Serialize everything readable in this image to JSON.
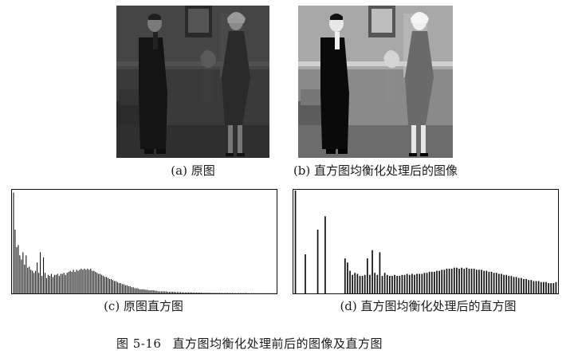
{
  "figure": {
    "number": "图 5-16",
    "title": "直方图均衡化处理前后的图像及直方图"
  },
  "panels": {
    "a": {
      "caption": "(a) 原图"
    },
    "b": {
      "caption": "(b) 直方图均衡化处理后的图像"
    },
    "c": {
      "caption": "(c) 原图直方图"
    },
    "d": {
      "caption": "(d) 直方图均衡化处理后的直方图"
    }
  },
  "chart_data": [
    {
      "type": "bar",
      "description_ref": "c",
      "x": [
        0,
        1,
        2,
        3,
        4,
        5,
        6,
        7,
        8,
        9,
        10,
        11,
        12,
        13,
        14,
        15,
        16,
        17,
        18,
        19,
        20,
        21,
        22,
        23,
        24,
        25,
        26,
        27,
        28,
        29,
        30,
        31,
        32,
        33,
        34,
        35,
        36,
        37,
        38,
        39,
        40,
        41,
        42,
        43,
        44,
        45,
        46,
        47,
        48,
        49,
        50,
        51,
        52,
        53,
        54,
        55,
        56,
        57,
        58,
        59,
        60,
        61,
        62,
        63,
        64,
        65,
        66,
        67,
        68,
        69,
        70,
        71,
        72,
        73,
        74,
        75,
        76,
        77,
        78,
        79,
        80,
        81,
        82,
        83,
        84,
        85,
        86,
        87,
        88,
        89,
        90,
        91,
        92,
        93,
        94,
        95,
        96,
        97,
        98,
        99,
        100,
        101,
        102,
        103,
        104,
        105,
        106,
        107,
        108,
        109,
        110,
        111,
        112,
        113,
        114,
        115,
        116,
        117,
        118,
        119,
        120,
        121,
        122,
        123,
        124,
        125,
        126,
        127,
        128,
        129,
        130,
        131,
        132,
        133,
        134,
        135,
        136,
        137,
        138,
        139,
        140,
        141,
        142,
        143,
        144,
        145,
        146,
        147,
        148,
        149,
        150,
        151,
        152,
        153,
        154,
        155,
        156,
        157,
        158,
        159,
        160,
        161,
        162,
        163,
        164,
        165,
        166
      ],
      "values": [
        0.98,
        0.62,
        0.45,
        0.47,
        0.37,
        0.33,
        0.4,
        0.28,
        0.37,
        0.25,
        0.26,
        0.23,
        0.22,
        0.2,
        0.22,
        0.3,
        0.2,
        0.4,
        0.17,
        0.35,
        0.2,
        0.15,
        0.18,
        0.17,
        0.19,
        0.16,
        0.18,
        0.18,
        0.19,
        0.17,
        0.19,
        0.19,
        0.2,
        0.18,
        0.2,
        0.21,
        0.22,
        0.21,
        0.23,
        0.21,
        0.23,
        0.22,
        0.23,
        0.24,
        0.23,
        0.24,
        0.23,
        0.24,
        0.23,
        0.24,
        0.22,
        0.22,
        0.21,
        0.2,
        0.19,
        0.19,
        0.18,
        0.17,
        0.16,
        0.16,
        0.15,
        0.14,
        0.14,
        0.13,
        0.12,
        0.12,
        0.11,
        0.1,
        0.1,
        0.09,
        0.09,
        0.08,
        0.08,
        0.07,
        0.07,
        0.06,
        0.06,
        0.05,
        0.05,
        0.05,
        0.04,
        0.04,
        0.04,
        0.04,
        0.035,
        0.035,
        0.03,
        0.03,
        0.03,
        0.03,
        0.025,
        0.025,
        0.02,
        0.02,
        0.02,
        0.02,
        0.02,
        0.02,
        0.015,
        0.015,
        0.015,
        0.015,
        0.015,
        0.012,
        0.012,
        0.012,
        0.012,
        0.01,
        0.01,
        0.01,
        0.01,
        0.01,
        0.01,
        0.01,
        0.008,
        0.008,
        0.008,
        0.008,
        0.008,
        0.008,
        0.006,
        0.006,
        0.006,
        0.006,
        0.006,
        0.006,
        0.005,
        0.005,
        0.005,
        0.005,
        0.005,
        0.005,
        0.004,
        0.004,
        0.004,
        0.004,
        0.004,
        0.004,
        0.004,
        0.004,
        0.003,
        0.003,
        0.003,
        0.003,
        0.003,
        0.003,
        0.003,
        0.003,
        0.003,
        0.002,
        0.002,
        0.002,
        0.002,
        0.002,
        0.002,
        0.002,
        0.002,
        0.002,
        0.002,
        0.002,
        0.002,
        0.002,
        0.002,
        0.002,
        0.002,
        0.002,
        0.002
      ],
      "ylim": [
        0,
        1
      ],
      "xlabel": "",
      "ylabel": "",
      "title": ""
    },
    {
      "type": "bar",
      "description_ref": "d",
      "x": [
        0,
        1,
        2,
        3,
        4,
        5,
        6,
        7,
        8,
        9,
        10,
        11,
        12,
        13,
        14,
        15,
        16,
        17,
        18,
        19,
        20,
        21,
        22,
        23,
        24,
        25,
        26,
        27,
        28,
        29,
        30,
        31,
        32,
        33,
        34,
        35,
        36,
        37,
        38,
        39,
        40,
        41,
        42,
        43,
        44,
        45,
        46,
        47,
        48,
        49,
        50,
        51,
        52,
        53,
        54,
        55,
        56,
        57,
        58,
        59,
        60,
        61,
        62,
        63,
        64,
        65,
        66,
        67,
        68,
        69,
        70,
        71,
        72,
        73,
        74,
        75,
        76,
        77,
        78,
        79,
        80,
        81,
        82,
        83,
        84,
        85,
        86,
        87,
        88,
        89,
        90,
        91,
        92,
        93,
        94,
        95,
        96,
        97,
        98,
        99,
        100,
        101,
        102,
        103,
        104,
        105
      ],
      "values": [
        1.0,
        0.0,
        0.0,
        0.0,
        0.38,
        0.0,
        0.0,
        0.0,
        0.0,
        0.62,
        0.0,
        0.0,
        0.75,
        0.0,
        0.0,
        0.0,
        0.0,
        0.0,
        0.0,
        0.0,
        0.34,
        0.3,
        0.22,
        0.18,
        0.2,
        0.19,
        0.17,
        0.17,
        0.18,
        0.34,
        0.18,
        0.42,
        0.2,
        0.18,
        0.4,
        0.17,
        0.2,
        0.18,
        0.17,
        0.17,
        0.18,
        0.17,
        0.17,
        0.18,
        0.18,
        0.19,
        0.18,
        0.19,
        0.18,
        0.19,
        0.19,
        0.19,
        0.2,
        0.2,
        0.21,
        0.21,
        0.21,
        0.22,
        0.22,
        0.23,
        0.23,
        0.24,
        0.24,
        0.24,
        0.25,
        0.25,
        0.24,
        0.25,
        0.24,
        0.25,
        0.24,
        0.24,
        0.24,
        0.23,
        0.23,
        0.23,
        0.22,
        0.22,
        0.21,
        0.21,
        0.2,
        0.2,
        0.19,
        0.19,
        0.18,
        0.18,
        0.17,
        0.17,
        0.16,
        0.16,
        0.15,
        0.15,
        0.14,
        0.14,
        0.13,
        0.13,
        0.12,
        0.12,
        0.12,
        0.11,
        0.11,
        0.11,
        0.1,
        0.1,
        0.1,
        0.11
      ],
      "ylim": [
        0,
        1
      ],
      "xlabel": "",
      "ylabel": "",
      "title": ""
    }
  ]
}
